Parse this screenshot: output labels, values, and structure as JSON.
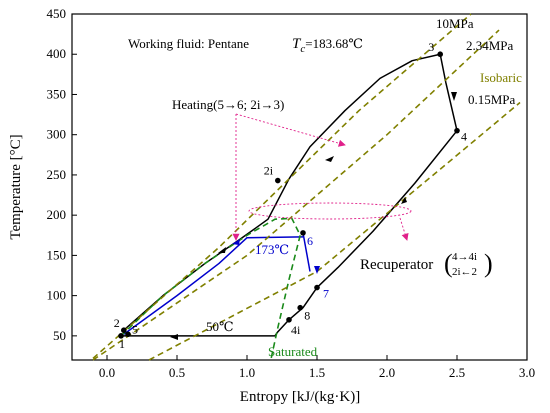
{
  "chart_data": {
    "type": "line",
    "xlabel": "Entropy [kJ/(kg·K)]",
    "ylabel": "Temperature [°C]",
    "xlim": [
      -0.25,
      3.0
    ],
    "ylim": [
      20,
      450
    ],
    "x_ticks": [
      0.0,
      0.5,
      1.0,
      1.5,
      2.0,
      2.5,
      3.0
    ],
    "x_tick_labels": [
      "0.0",
      "0.5",
      "1.0",
      "1.5",
      "2.0",
      "2.5",
      "3.0"
    ],
    "y_ticks": [
      50,
      100,
      150,
      200,
      250,
      300,
      350,
      400,
      450
    ],
    "y_tick_labels": [
      "50",
      "100",
      "150",
      "200",
      "250",
      "300",
      "350",
      "400",
      "450"
    ],
    "grid": false,
    "series": [
      {
        "color": "#000000",
        "style": "solid",
        "x": [
          0.12,
          0.4,
          0.7,
          0.95,
          1.15,
          1.3,
          1.45,
          1.7,
          1.95,
          2.18,
          2.38
        ],
        "y": [
          57,
          100,
          140,
          170,
          195,
          245,
          285,
          330,
          370,
          392,
          400
        ]
      },
      {
        "color": "#000000",
        "style": "solid",
        "x": [
          2.38,
          2.42,
          2.46,
          2.5
        ],
        "y": [
          400,
          365,
          335,
          305
        ]
      },
      {
        "color": "#000000",
        "style": "solid",
        "x": [
          2.5,
          2.2,
          1.9,
          1.65,
          1.5
        ],
        "y": [
          305,
          240,
          180,
          135,
          110
        ]
      },
      {
        "color": "#000000",
        "style": "solid",
        "x": [
          1.5,
          1.4,
          1.3
        ],
        "y": [
          110,
          85,
          70
        ]
      },
      {
        "color": "#000000",
        "style": "solid",
        "x": [
          1.3,
          1.22,
          1.2,
          0.1
        ],
        "y": [
          70,
          55,
          50,
          50
        ]
      },
      {
        "color": "#0000cc",
        "style": "solid",
        "x": [
          0.12,
          0.5,
          0.8,
          1.0,
          1.4
        ],
        "y": [
          52,
          100,
          140,
          172,
          173
        ]
      },
      {
        "color": "#0000cc",
        "style": "solid",
        "x": [
          1.4,
          1.45
        ],
        "y": [
          178,
          130
        ]
      },
      {
        "color": "#1a8a1a",
        "style": "dashed",
        "x": [
          0.1,
          0.4,
          0.7,
          1.0,
          1.2,
          1.32,
          1.38
        ],
        "y": [
          50,
          100,
          140,
          175,
          195,
          196,
          175
        ]
      },
      {
        "color": "#1a8a1a",
        "style": "dashed",
        "x": [
          1.38,
          1.3,
          1.22,
          1.17
        ],
        "y": [
          175,
          120,
          60,
          20
        ]
      },
      {
        "color": "#808000",
        "style": "dashed",
        "x": [
          -0.1,
          0.8,
          1.8,
          2.6
        ],
        "y": [
          22,
          160,
          330,
          450
        ]
      },
      {
        "color": "#808000",
        "style": "dashed",
        "x": [
          -0.1,
          1.0,
          2.0,
          2.8
        ],
        "y": [
          20,
          150,
          300,
          430
        ]
      },
      {
        "color": "#808000",
        "style": "dashed",
        "x": [
          0.3,
          1.5,
          2.4,
          2.95
        ],
        "y": [
          20,
          130,
          260,
          340
        ]
      }
    ],
    "points": [
      {
        "label": "1",
        "x": 0.1,
        "y": 50,
        "color": "#000000"
      },
      {
        "label": "2",
        "x": 0.12,
        "y": 57,
        "color": "#000000"
      },
      {
        "label": "5",
        "x": 0.15,
        "y": 52,
        "color": "#000000"
      },
      {
        "label": "2i",
        "x": 1.22,
        "y": 243,
        "color": "#000000"
      },
      {
        "label": "3",
        "x": 2.38,
        "y": 400,
        "color": "#000000"
      },
      {
        "label": "4",
        "x": 2.5,
        "y": 305,
        "color": "#000000"
      },
      {
        "label": "6",
        "x": 1.4,
        "y": 178,
        "color": "#0000cc"
      },
      {
        "label": "7",
        "x": 1.5,
        "y": 110,
        "color": "#0000cc"
      },
      {
        "label": "8",
        "x": 1.38,
        "y": 85,
        "color": "#000000"
      },
      {
        "label": "4i",
        "x": 1.3,
        "y": 70,
        "color": "#000000"
      }
    ],
    "annotations": {
      "fluid": "Working fluid: Pentane",
      "tc_prefix": "T",
      "tc_sub": "c",
      "tc_value": "=183.68℃",
      "p_high": "10MPa",
      "p_mid": "2.34MPa",
      "p_low": "0.15MPa",
      "isobaric": "Isobaric",
      "heating": "Heating(5→6; 2i→3)",
      "temp_173": "173℃",
      "temp_50": "50℃",
      "saturated": "Saturated",
      "recuperator": "Recuperator",
      "rec_top": "4→4i",
      "rec_bot": "2i←2"
    }
  }
}
